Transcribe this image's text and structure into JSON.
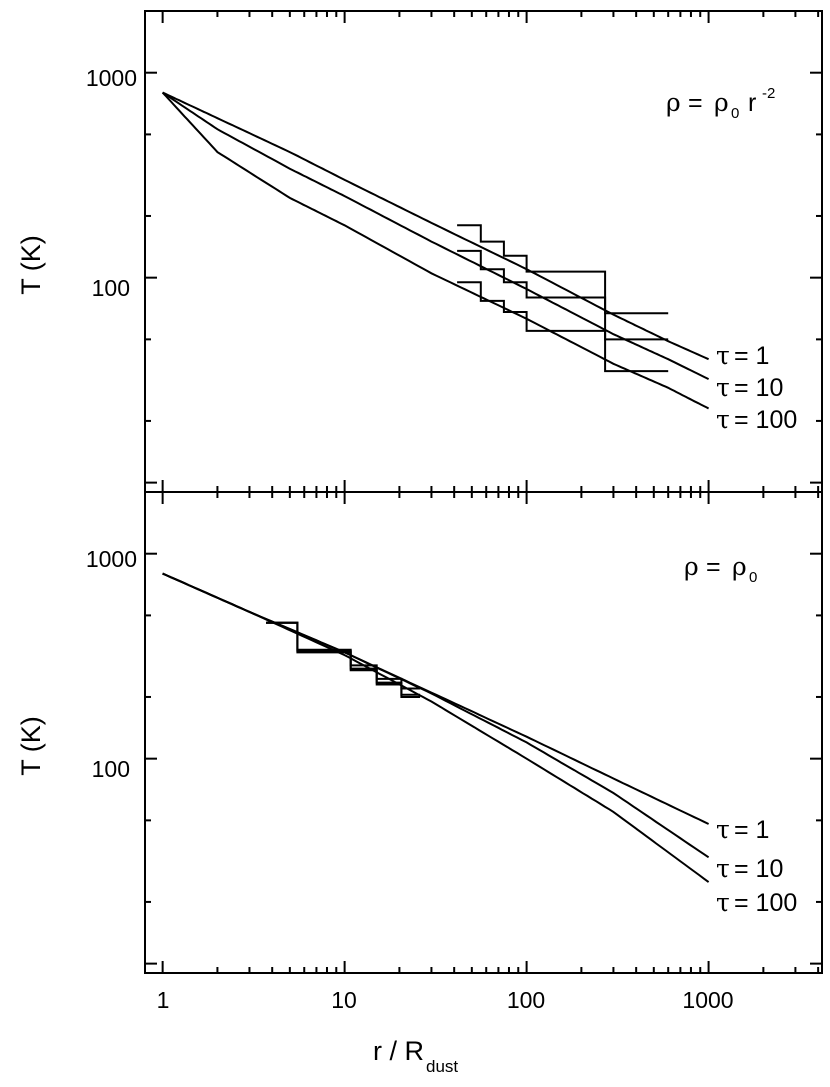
{
  "chart_data": [
    {
      "type": "line",
      "panel": "top",
      "log_x": true,
      "log_y": true,
      "xlim": [
        0.8,
        4200
      ],
      "ylim": [
        9.0,
        2000
      ],
      "xlabel": "",
      "ylabel": "T (K)",
      "ytick_labels": [
        "100",
        "1000"
      ],
      "annotation": {
        "rho": "ρ",
        "eq": "= ",
        "rho0": "ρ",
        "sub0": "0",
        "r": "r",
        "exp": "-2"
      },
      "series": [
        {
          "name": "τ = 1",
          "points": [
            [
              1,
              800
            ],
            [
              2,
              600
            ],
            [
              5,
              410
            ],
            [
              10,
              300
            ],
            [
              30,
              185
            ],
            [
              100,
              110
            ],
            [
              300,
              66
            ],
            [
              600,
              49
            ],
            [
              1000,
              40
            ]
          ]
        },
        {
          "name": "τ = 10",
          "points": [
            [
              1,
              800
            ],
            [
              2,
              530
            ],
            [
              5,
              340
            ],
            [
              10,
              250
            ],
            [
              30,
              150
            ],
            [
              100,
              88
            ],
            [
              300,
              53
            ],
            [
              600,
              40
            ],
            [
              1000,
              32
            ]
          ]
        },
        {
          "name": "τ = 100",
          "points": [
            [
              1,
              800
            ],
            [
              2,
              410
            ],
            [
              5,
              245
            ],
            [
              10,
              180
            ],
            [
              30,
              105
            ],
            [
              100,
              63
            ],
            [
              300,
              38
            ],
            [
              600,
              29
            ],
            [
              1000,
              23
            ]
          ]
        }
      ],
      "histograms": [
        {
          "edges": [
            41.5,
            56,
            75,
            100,
            270,
            600
          ],
          "values": [
            180,
            150,
            128,
            107,
            67
          ]
        },
        {
          "edges": [
            41.5,
            56,
            75,
            100,
            270,
            600
          ],
          "values": [
            135,
            110,
            95,
            80,
            50
          ]
        },
        {
          "edges": [
            41.5,
            56,
            75,
            100,
            270,
            600
          ],
          "values": [
            95,
            77,
            68,
            55,
            35
          ]
        }
      ],
      "series_labels": [
        {
          "tau": "τ",
          "text": "= 1"
        },
        {
          "tau": "τ",
          "text": "= 10"
        },
        {
          "tau": "τ",
          "text": "= 100"
        }
      ]
    },
    {
      "type": "line",
      "panel": "bottom",
      "log_x": true,
      "log_y": true,
      "xlim": [
        0.8,
        4200
      ],
      "ylim": [
        9.0,
        2000
      ],
      "xlabel": "r / R",
      "xlabel_sub": "dust",
      "ylabel": "T (K)",
      "xtick_labels": [
        "1",
        "10",
        "100",
        "1000"
      ],
      "ytick_labels": [
        "100",
        "1000"
      ],
      "annotation": {
        "rho": "ρ",
        "eq": "= ",
        "rho0": "ρ",
        "sub0": "0"
      },
      "series": [
        {
          "name": "τ = 1",
          "points": [
            [
              1,
              800
            ],
            [
              3,
              520
            ],
            [
              10,
              330
            ],
            [
              30,
              210
            ],
            [
              100,
              128
            ],
            [
              300,
              80
            ],
            [
              1000,
              48
            ]
          ]
        },
        {
          "name": "τ = 10",
          "points": [
            [
              1,
              800
            ],
            [
              3,
              520
            ],
            [
              10,
              330
            ],
            [
              30,
              208
            ],
            [
              100,
              120
            ],
            [
              300,
              68
            ],
            [
              1000,
              33
            ]
          ]
        },
        {
          "name": "τ = 100",
          "points": [
            [
              1,
              800
            ],
            [
              3,
              520
            ],
            [
              10,
              320
            ],
            [
              30,
              190
            ],
            [
              100,
              100
            ],
            [
              300,
              55
            ],
            [
              1000,
              25
            ]
          ]
        }
      ],
      "histograms": [
        {
          "edges": [
            3.7,
            5.5,
            10.8,
            15,
            20.5,
            26
          ],
          "values": [
            460,
            335,
            285,
            245,
            220
          ]
        },
        {
          "edges": [
            3.7,
            5.5,
            10.8,
            15,
            20.5,
            26
          ],
          "values": [
            460,
            330,
            275,
            235,
            205
          ]
        },
        {
          "edges": [
            3.7,
            5.5,
            10.8,
            15,
            20.5,
            26
          ],
          "values": [
            460,
            340,
            270,
            230,
            200
          ]
        }
      ],
      "series_labels": [
        {
          "tau": "τ",
          "text": "= 1"
        },
        {
          "tau": "τ",
          "text": "= 10"
        },
        {
          "tau": "τ",
          "text": "= 100"
        }
      ]
    }
  ]
}
